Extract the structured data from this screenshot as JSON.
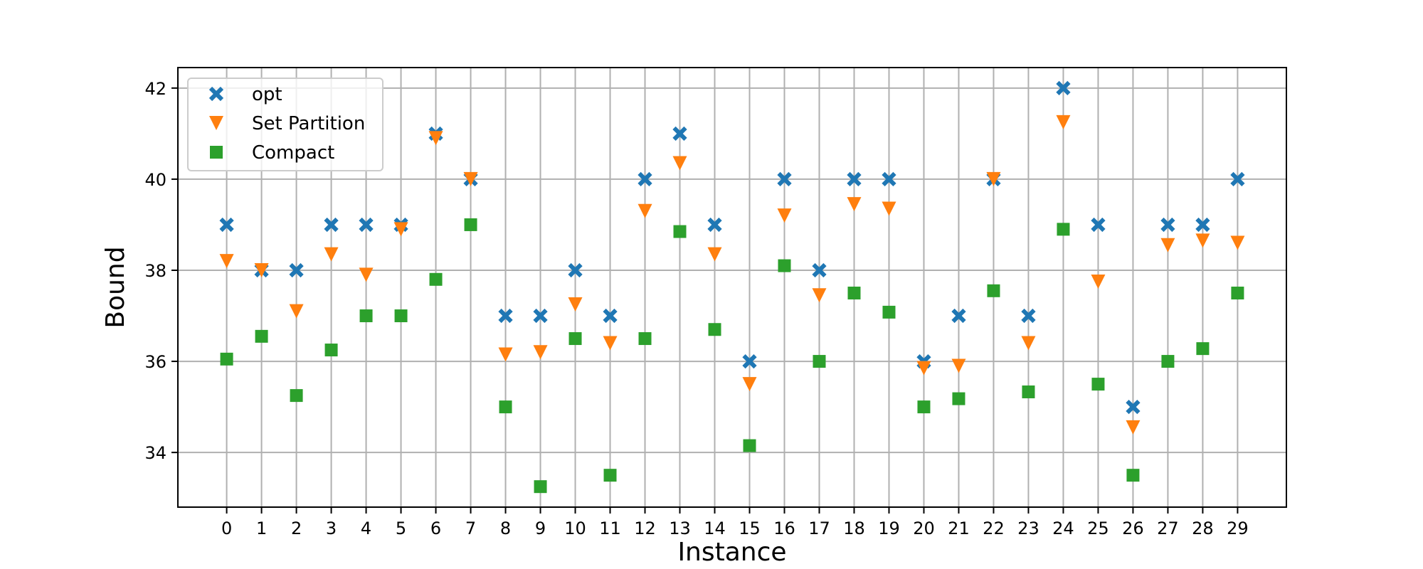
{
  "chart_data": {
    "type": "scatter",
    "xlabel": "Instance",
    "ylabel": "Bound",
    "x": [
      0,
      1,
      2,
      3,
      4,
      5,
      6,
      7,
      8,
      9,
      10,
      11,
      12,
      13,
      14,
      15,
      16,
      17,
      18,
      19,
      20,
      21,
      22,
      23,
      24,
      25,
      26,
      27,
      28,
      29
    ],
    "x_ticks": [
      "0",
      "1",
      "2",
      "3",
      "4",
      "5",
      "6",
      "7",
      "8",
      "9",
      "10",
      "11",
      "12",
      "13",
      "14",
      "15",
      "16",
      "17",
      "18",
      "19",
      "20",
      "21",
      "22",
      "23",
      "24",
      "25",
      "26",
      "27",
      "28",
      "29"
    ],
    "xlim": [
      -1.4,
      30.4
    ],
    "ylim": [
      32.8,
      42.45
    ],
    "y_ticks": [
      34,
      36,
      38,
      40,
      42
    ],
    "grid": true,
    "legend_position": "top-left",
    "series": [
      {
        "name": "opt",
        "marker": "x",
        "color": "#1f77b4",
        "values": [
          39,
          38,
          38,
          39,
          39,
          39,
          41,
          40,
          37,
          37,
          38,
          37,
          40,
          41,
          39,
          36,
          40,
          38,
          40,
          40,
          36,
          37,
          40,
          37,
          42,
          39,
          35,
          39,
          39,
          40
        ]
      },
      {
        "name": "Set Partition",
        "marker": "triangle-down",
        "color": "#ff7f0e",
        "values": [
          38.2,
          38.0,
          37.1,
          38.35,
          37.9,
          38.9,
          40.9,
          40.0,
          36.15,
          36.2,
          37.25,
          36.4,
          39.3,
          40.35,
          38.35,
          35.5,
          39.2,
          37.45,
          39.45,
          39.35,
          35.85,
          35.9,
          40.0,
          36.4,
          41.25,
          37.75,
          34.55,
          38.55,
          38.65,
          38.6
        ]
      },
      {
        "name": "Compact",
        "marker": "square",
        "color": "#2ca02c",
        "values": [
          36.05,
          36.55,
          35.25,
          36.25,
          37.0,
          37.0,
          37.8,
          39.0,
          35.0,
          33.25,
          36.5,
          33.5,
          36.5,
          38.85,
          36.7,
          34.15,
          38.1,
          36.0,
          37.5,
          37.08,
          35.0,
          35.18,
          37.55,
          35.33,
          38.9,
          35.5,
          33.5,
          36.0,
          36.28,
          37.5
        ]
      }
    ]
  }
}
